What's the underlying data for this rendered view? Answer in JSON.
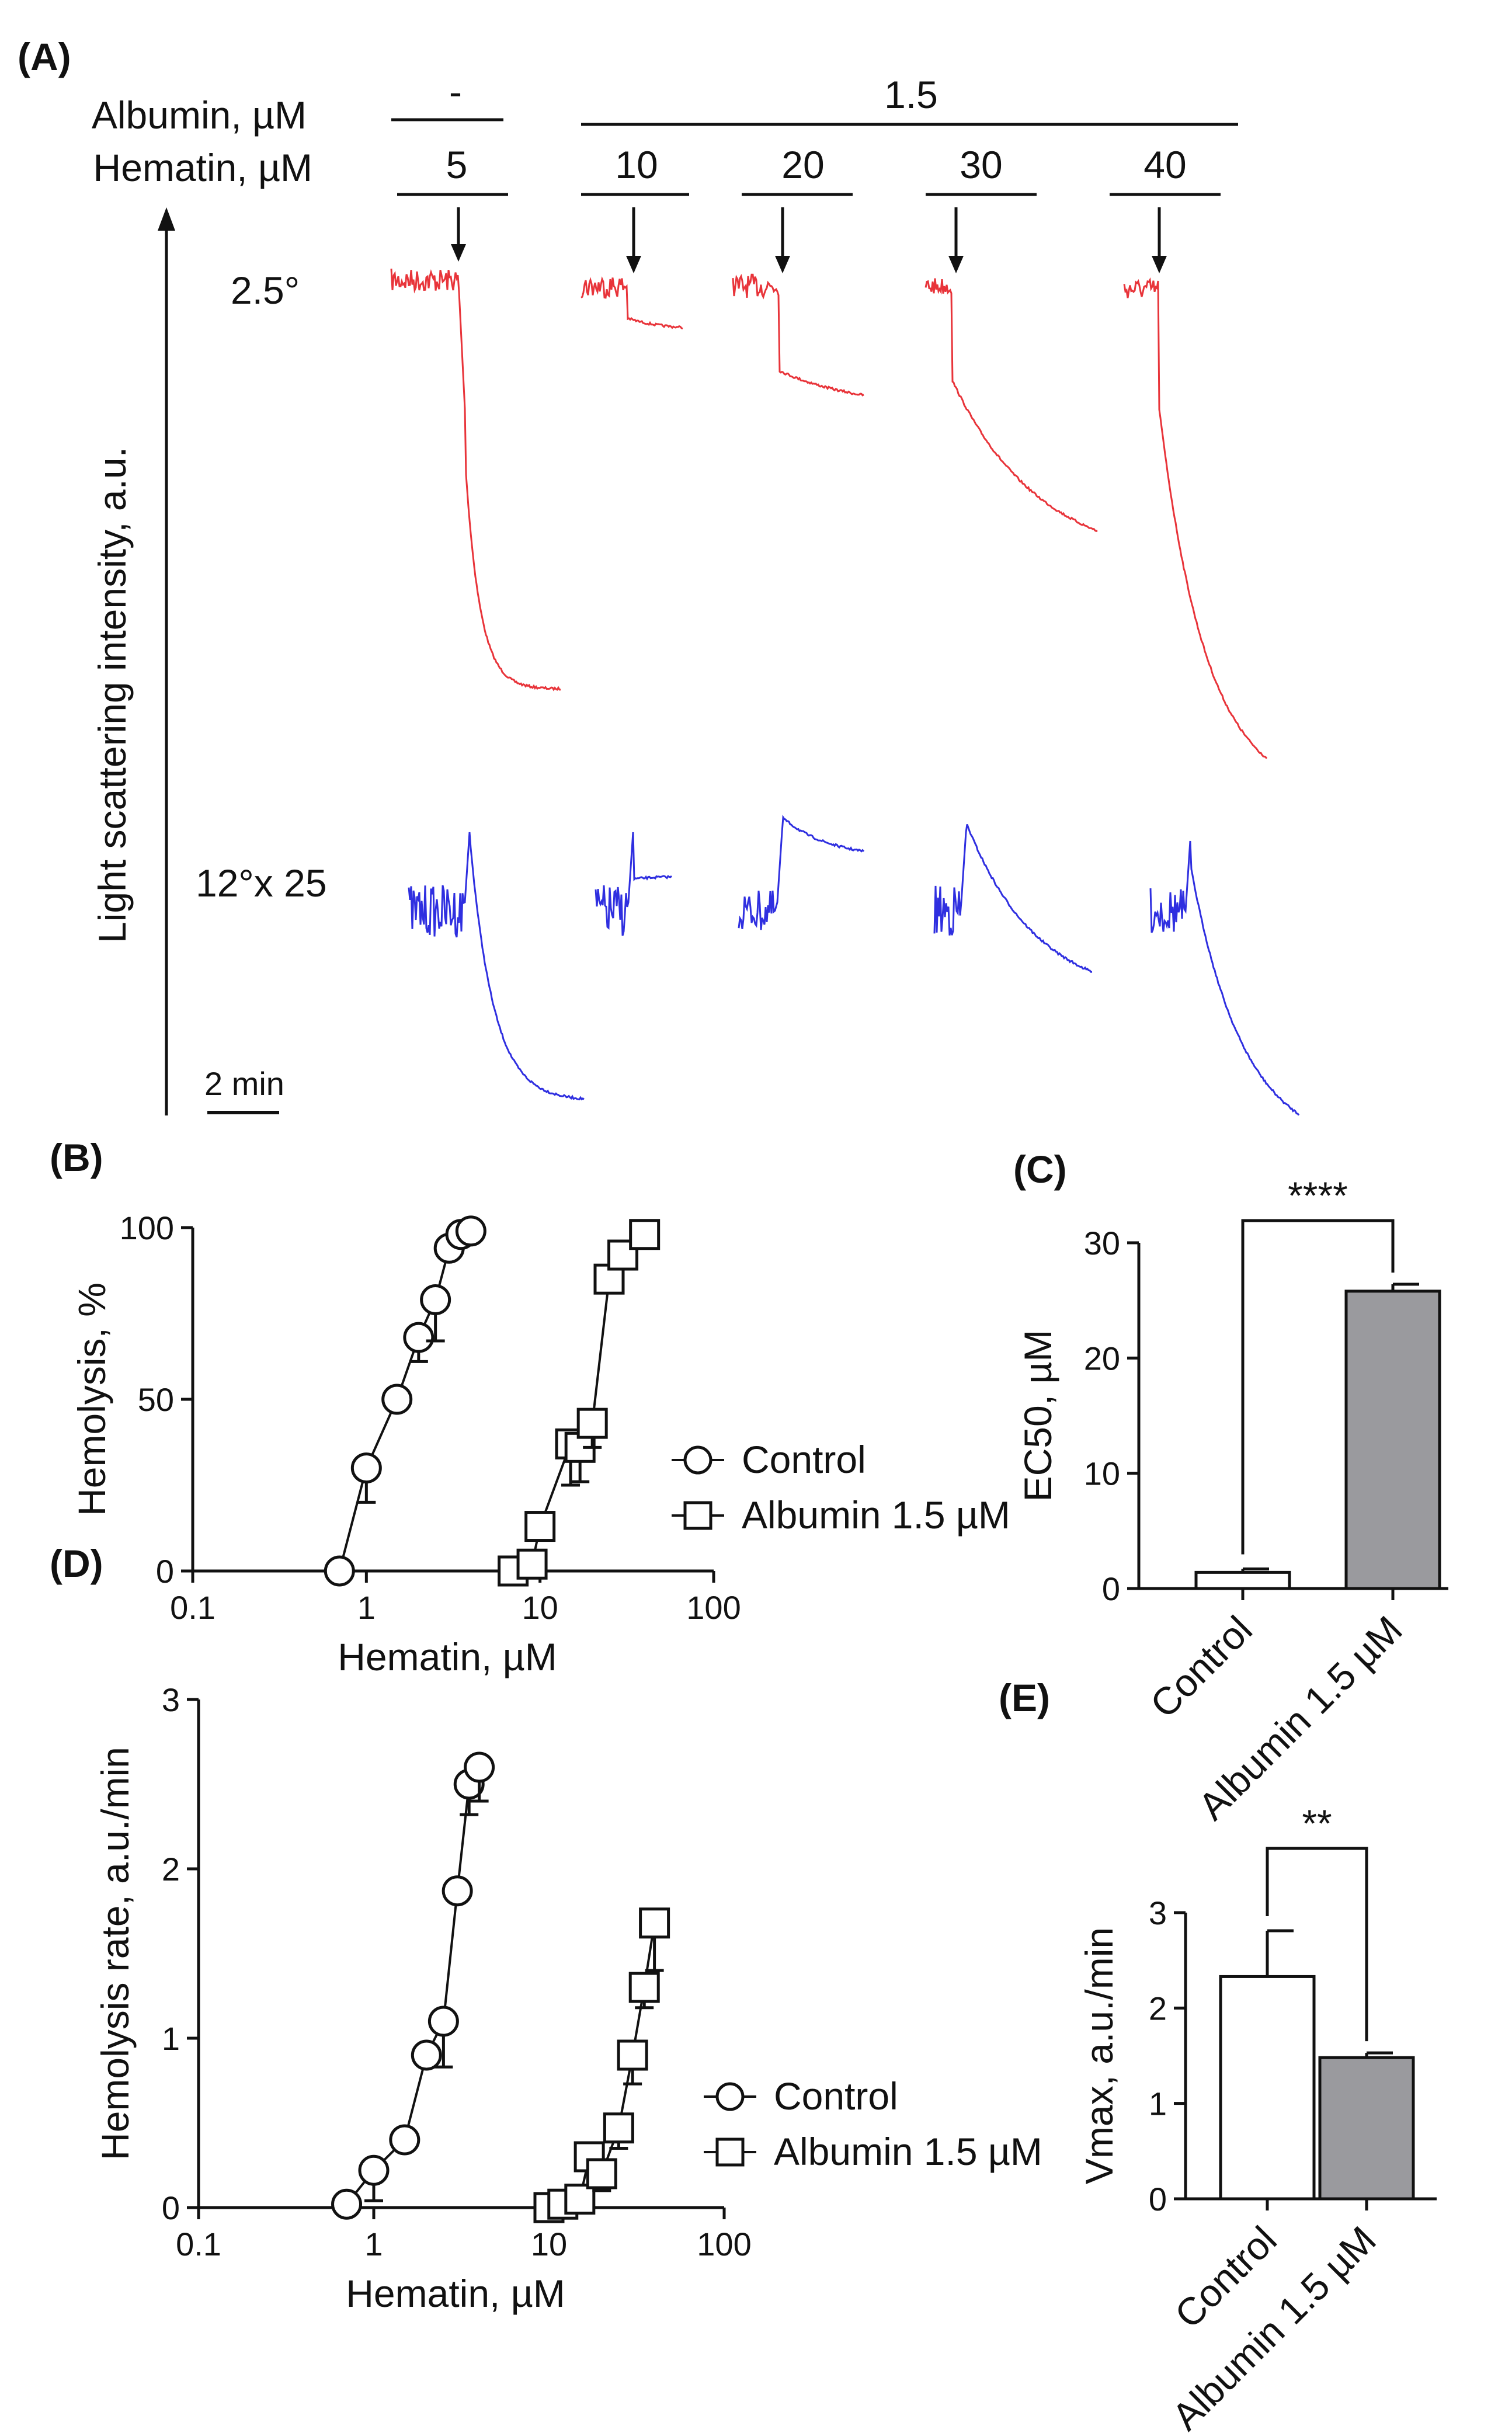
{
  "colors": {
    "red_trace": "#e8343a",
    "blue_trace": "#2f2fe0",
    "grey_bar": "#9a9a9e",
    "white_bar": "#ffffff",
    "axis": "#111111"
  },
  "panel_a": {
    "label": "(A)",
    "albumin_label": "Albumin, µM",
    "hematin_label": "Hematin, µM",
    "albumin_values": [
      "-",
      "1.5"
    ],
    "hematin_values": [
      "5",
      "10",
      "20",
      "30",
      "40"
    ],
    "ylabel": "Light scattering intensity, a.u.",
    "angle_top": "2.5°",
    "angle_bottom": "12°x 25",
    "scale_bar": "2 min"
  },
  "chart_data": [
    {
      "id": "B",
      "type": "scatter",
      "panel_label": "(B)",
      "xlabel": "Hematin, µM",
      "ylabel": "Hemolysis, %",
      "xscale": "log",
      "xlim": [
        0.1,
        100
      ],
      "ylim": [
        0,
        100
      ],
      "xticks": [
        "0.1",
        "1",
        "10",
        "100"
      ],
      "yticks": [
        "0",
        "50",
        "100"
      ],
      "legend_position": "right",
      "series": [
        {
          "name": "Control",
          "marker": "circle",
          "x": [
            0.7,
            1.0,
            1.5,
            2.0,
            2.5,
            3.0,
            3.5,
            4.0
          ],
          "y": [
            0,
            30,
            50,
            68,
            79,
            94,
            98,
            99
          ],
          "err": [
            0,
            10,
            0,
            7,
            12,
            3,
            2,
            0
          ]
        },
        {
          "name": "Albumin 1.5 µM",
          "marker": "square",
          "x": [
            7,
            9,
            10,
            15,
            17,
            20,
            25,
            30,
            40
          ],
          "y": [
            0,
            2,
            13,
            37,
            36,
            43,
            85,
            92,
            98
          ],
          "err": [
            0,
            0,
            0,
            12,
            10,
            7,
            4,
            3,
            3
          ]
        }
      ]
    },
    {
      "id": "C",
      "type": "bar",
      "panel_label": "(C)",
      "ylabel": "EC50, µM",
      "ylim": [
        0,
        30
      ],
      "yticks": [
        "0",
        "10",
        "20",
        "30"
      ],
      "categories": [
        "Control",
        "Albumin 1.5 µM"
      ],
      "values": [
        1.4,
        25.8
      ],
      "err": [
        0.3,
        0.6
      ],
      "significance": "****"
    },
    {
      "id": "D",
      "type": "scatter",
      "panel_label": "(D)",
      "xlabel": "Hematin, µM",
      "ylabel": "Hemolysis rate, a.u./min",
      "xscale": "log",
      "xlim": [
        0.1,
        100
      ],
      "ylim": [
        0,
        3
      ],
      "xticks": [
        "0.1",
        "1",
        "10",
        "100"
      ],
      "yticks": [
        "0",
        "1",
        "2",
        "3"
      ],
      "legend_position": "right",
      "series": [
        {
          "name": "Control",
          "marker": "circle",
          "x": [
            0.7,
            1.0,
            1.5,
            2.0,
            2.5,
            3.0,
            3.5,
            4.0
          ],
          "y": [
            0.02,
            0.22,
            0.4,
            0.9,
            1.1,
            1.87,
            2.5,
            2.6
          ],
          "err": [
            0,
            0.18,
            0,
            0,
            0.27,
            0,
            0.18,
            0.2
          ]
        },
        {
          "name": "Albumin 1.5 µM",
          "marker": "square",
          "x": [
            10,
            12,
            15,
            17,
            20,
            25,
            30,
            35,
            40
          ],
          "y": [
            0,
            0.02,
            0.05,
            0.3,
            0.2,
            0.47,
            0.9,
            1.3,
            1.68
          ],
          "err": [
            0,
            0,
            0,
            0,
            0.1,
            0.12,
            0.17,
            0.12,
            0.28
          ]
        }
      ]
    },
    {
      "id": "E",
      "type": "bar",
      "panel_label": "(E)",
      "ylabel": "Vmax, a.u./min",
      "ylim": [
        0,
        3
      ],
      "yticks": [
        "0",
        "1",
        "2",
        "3"
      ],
      "categories": [
        "Control",
        "Albumin 1.5 µM"
      ],
      "values": [
        2.33,
        1.48
      ],
      "err": [
        0.48,
        0.05
      ],
      "significance": "**"
    }
  ]
}
